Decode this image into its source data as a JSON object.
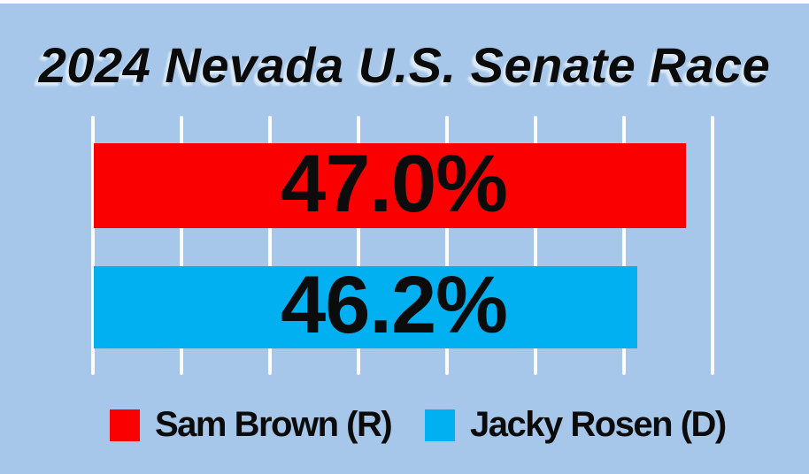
{
  "title": "2024 Nevada U.S. Senate Race",
  "colors": {
    "background": "#a6c7e9",
    "gridline": "#ffffff",
    "text": "#0b0b0c",
    "republican_red": "#fb0000",
    "democrat_blue": "#00b0f0"
  },
  "chart_data": {
    "type": "bar",
    "orientation": "horizontal",
    "title": "2024 Nevada U.S. Senate Race",
    "categories": [
      "Sam Brown (R)",
      "Jacky Rosen (D)"
    ],
    "series": [
      {
        "name": "Sam Brown (R)",
        "value": 47.0,
        "label": "47.0%",
        "color": "#fb0000"
      },
      {
        "name": "Jacky Rosen (D)",
        "value": 46.2,
        "label": "46.2%",
        "color": "#00b0f0"
      }
    ],
    "value_labels_position": "inside-center",
    "grid": "vertical white gridlines, 8 lines, no tick labels",
    "axis_labels_visible": false,
    "legend_position": "bottom"
  },
  "legend": {
    "items": [
      {
        "label": "Sam Brown (R)",
        "color": "#fb0000"
      },
      {
        "label": "Jacky Rosen (D)",
        "color": "#00b0f0"
      }
    ]
  }
}
